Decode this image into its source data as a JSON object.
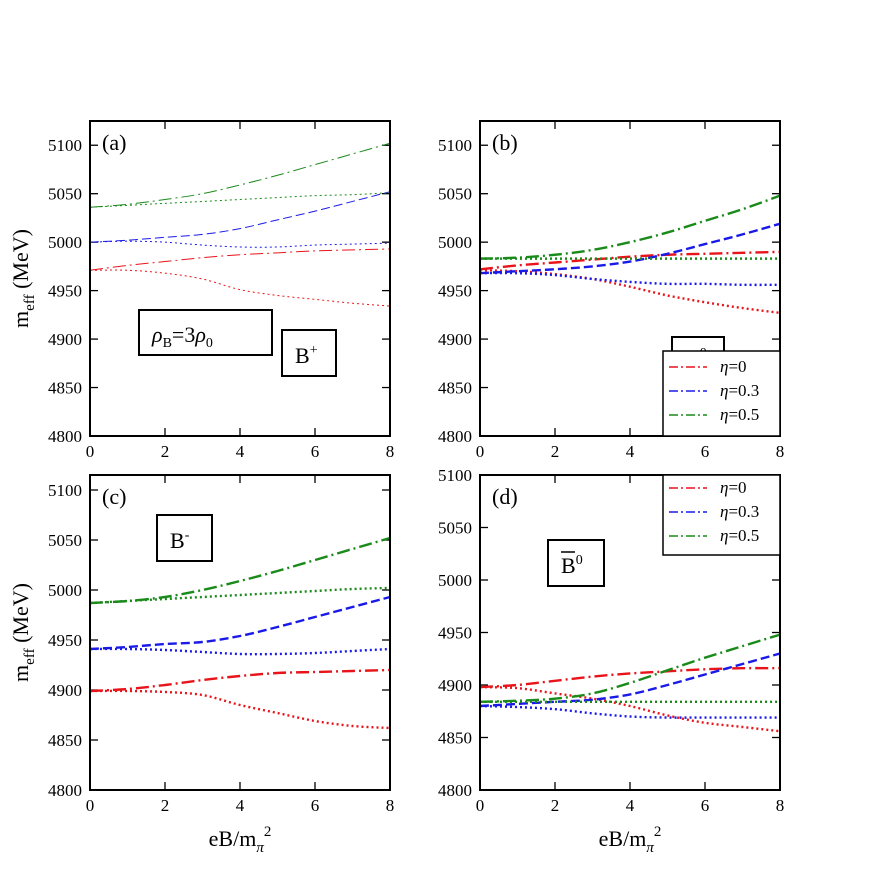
{
  "chart_data": [
    {
      "type": "line",
      "panel_label": "(a)",
      "particle": {
        "base": "B",
        "sup": "+",
        "overbar": false
      },
      "annotation": {
        "rho": "ρ",
        "sub": "B",
        "eq": "=3",
        "rho0": "ρ",
        "sub0": "0"
      },
      "xlim": [
        0,
        8
      ],
      "ylim": [
        4800,
        5125
      ],
      "xticks": [
        "0",
        "2",
        "4",
        "6",
        "8"
      ],
      "yticks": [
        "4800",
        "4850",
        "4900",
        "4950",
        "5000",
        "5050",
        "5100"
      ],
      "ylabel": {
        "main": "m",
        "sub": "eff",
        "rest": " (MeV)"
      },
      "line_width": 1,
      "series": [
        {
          "color": "#e8141a",
          "style": "dashdot",
          "x": [
            0,
            1,
            2,
            3,
            4,
            5,
            6,
            7,
            8
          ],
          "y": [
            4971,
            4976,
            4980,
            4984,
            4987,
            4989,
            4991,
            4992,
            4993
          ]
        },
        {
          "color": "#e8141a",
          "style": "dotted",
          "x": [
            0,
            1,
            2,
            3,
            4,
            5,
            6,
            7,
            8
          ],
          "y": [
            4971,
            4971,
            4968,
            4962,
            4951,
            4945,
            4941,
            4937,
            4934
          ]
        },
        {
          "color": "#1a1ae8",
          "style": "dashed",
          "x": [
            0,
            1,
            2,
            3,
            4,
            5,
            6,
            7,
            8
          ],
          "y": [
            5000,
            5002,
            5005,
            5008,
            5014,
            5023,
            5032,
            5042,
            5052
          ]
        },
        {
          "color": "#1a1ae8",
          "style": "dotted",
          "x": [
            0,
            1,
            2,
            3,
            4,
            5,
            6,
            7,
            8
          ],
          "y": [
            5000,
            5001,
            5000,
            4997,
            4995,
            4995,
            4997,
            4998,
            4999
          ]
        },
        {
          "color": "#1a8a1a",
          "style": "dashdot",
          "x": [
            0,
            1,
            2,
            3,
            4,
            5,
            6,
            7,
            8
          ],
          "y": [
            5036,
            5039,
            5044,
            5050,
            5059,
            5069,
            5080,
            5091,
            5102
          ]
        },
        {
          "color": "#1a8a1a",
          "style": "dotted",
          "x": [
            0,
            1,
            2,
            3,
            4,
            5,
            6,
            7,
            8
          ],
          "y": [
            5036,
            5038,
            5040,
            5042,
            5044,
            5046,
            5048,
            5049,
            5051
          ]
        }
      ]
    },
    {
      "type": "line",
      "panel_label": "(b)",
      "particle": {
        "base": "B",
        "sup": "0",
        "overbar": false
      },
      "xlim": [
        0,
        8
      ],
      "ylim": [
        4800,
        5125
      ],
      "xticks": [
        "0",
        "2",
        "4",
        "6",
        "8"
      ],
      "yticks": [
        "4800",
        "4850",
        "4900",
        "4950",
        "5000",
        "5050",
        "5100"
      ],
      "line_width": 2.4,
      "legend": {
        "position": "bottom-right",
        "entries": [
          {
            "eta": "η",
            "label": "=0",
            "color": "#e8141a"
          },
          {
            "eta": "η",
            "label": "=0.3",
            "color": "#1a1ae8"
          },
          {
            "eta": "η",
            "label": "=0.5",
            "color": "#1a8a1a"
          }
        ]
      },
      "series": [
        {
          "color": "#e8141a",
          "style": "dashdot",
          "x": [
            0,
            1,
            2,
            3,
            4,
            5,
            6,
            7,
            8
          ],
          "y": [
            4972,
            4976,
            4979,
            4982,
            4985,
            4987,
            4988,
            4989,
            4990
          ]
        },
        {
          "color": "#e8141a",
          "style": "dotted",
          "x": [
            0,
            1,
            2,
            3,
            4,
            5,
            6,
            7,
            8
          ],
          "y": [
            4971,
            4970,
            4967,
            4962,
            4954,
            4945,
            4938,
            4932,
            4927
          ]
        },
        {
          "color": "#1a1ae8",
          "style": "dashed",
          "x": [
            0,
            1,
            2,
            3,
            4,
            5,
            6,
            7,
            8
          ],
          "y": [
            4968,
            4970,
            4972,
            4975,
            4980,
            4988,
            4998,
            5008,
            5019
          ]
        },
        {
          "color": "#1a1ae8",
          "style": "dotted",
          "x": [
            0,
            1,
            2,
            3,
            4,
            5,
            6,
            7,
            8
          ],
          "y": [
            4968,
            4968,
            4966,
            4962,
            4959,
            4957,
            4957,
            4956,
            4956
          ]
        },
        {
          "color": "#1a8a1a",
          "style": "dashdot",
          "x": [
            0,
            1,
            2,
            3,
            4,
            5,
            6,
            7,
            8
          ],
          "y": [
            4983,
            4984,
            4987,
            4992,
            5000,
            5010,
            5022,
            5034,
            5048
          ]
        },
        {
          "color": "#1a8a1a",
          "style": "dotted",
          "x": [
            0,
            1,
            2,
            3,
            4,
            5,
            6,
            7,
            8
          ],
          "y": [
            4983,
            4983,
            4983,
            4983,
            4983,
            4983,
            4983,
            4983,
            4983
          ]
        }
      ]
    },
    {
      "type": "line",
      "panel_label": "(c)",
      "particle": {
        "base": "B",
        "sup": "-",
        "overbar": false
      },
      "xlim": [
        0,
        8
      ],
      "ylim": [
        4800,
        5115
      ],
      "xticks": [
        "0",
        "2",
        "4",
        "6",
        "8"
      ],
      "yticks": [
        "4800",
        "4850",
        "4900",
        "4950",
        "5000",
        "5050",
        "5100"
      ],
      "ylabel": {
        "main": "m",
        "sub": "eff",
        "rest": " (MeV)"
      },
      "xlabel": {
        "main": "eB/m",
        "sub": "π",
        "sup": "2"
      },
      "line_width": 2.4,
      "series": [
        {
          "color": "#e8141a",
          "style": "dashdot",
          "x": [
            0,
            1,
            2,
            3,
            4,
            5,
            6,
            7,
            8
          ],
          "y": [
            4899,
            4901,
            4905,
            4910,
            4914,
            4917,
            4918,
            4919,
            4920
          ]
        },
        {
          "color": "#e8141a",
          "style": "dotted",
          "x": [
            0,
            1,
            2,
            3,
            4,
            5,
            6,
            7,
            8
          ],
          "y": [
            4899,
            4899,
            4898,
            4895,
            4885,
            4877,
            4869,
            4864,
            4862
          ]
        },
        {
          "color": "#1a1ae8",
          "style": "dashed",
          "x": [
            0,
            1,
            2,
            3,
            4,
            5,
            6,
            7,
            8
          ],
          "y": [
            4941,
            4943,
            4946,
            4948,
            4954,
            4963,
            4973,
            4983,
            4993
          ]
        },
        {
          "color": "#1a1ae8",
          "style": "dotted",
          "x": [
            0,
            1,
            2,
            3,
            4,
            5,
            6,
            7,
            8
          ],
          "y": [
            4941,
            4941,
            4940,
            4938,
            4936,
            4936,
            4937,
            4939,
            4941
          ]
        },
        {
          "color": "#1a8a1a",
          "style": "dashdot",
          "x": [
            0,
            1,
            2,
            3,
            4,
            5,
            6,
            7,
            8
          ],
          "y": [
            4987,
            4989,
            4993,
            5000,
            5009,
            5019,
            5030,
            5041,
            5052
          ]
        },
        {
          "color": "#1a8a1a",
          "style": "dotted",
          "x": [
            0,
            1,
            2,
            3,
            4,
            5,
            6,
            7,
            8
          ],
          "y": [
            4987,
            4989,
            4991,
            4993,
            4995,
            4997,
            4999,
            5001,
            5002
          ]
        }
      ]
    },
    {
      "type": "line",
      "panel_label": "(d)",
      "particle": {
        "base": "B",
        "sup": "0",
        "overbar": true
      },
      "xlim": [
        0,
        8
      ],
      "ylim": [
        4800,
        5100
      ],
      "xticks": [
        "0",
        "2",
        "4",
        "6",
        "8"
      ],
      "yticks": [
        "4800",
        "4850",
        "4900",
        "4950",
        "5000",
        "5050",
        "5100"
      ],
      "xlabel": {
        "main": "eB/m",
        "sub": "π",
        "sup": "2"
      },
      "line_width": 2.4,
      "legend": {
        "position": "top-right",
        "entries": [
          {
            "eta": "η",
            "label": "=0",
            "color": "#e8141a"
          },
          {
            "eta": "η",
            "label": "=0.3",
            "color": "#1a1ae8"
          },
          {
            "eta": "η",
            "label": "=0.5",
            "color": "#1a8a1a"
          }
        ]
      },
      "series": [
        {
          "color": "#e8141a",
          "style": "dashdot",
          "x": [
            0,
            1,
            2,
            3,
            4,
            5,
            6,
            7,
            8
          ],
          "y": [
            4898,
            4900,
            4904,
            4908,
            4911,
            4913,
            4915,
            4916,
            4916
          ]
        },
        {
          "color": "#e8141a",
          "style": "dotted",
          "x": [
            0,
            1,
            2,
            3,
            4,
            5,
            6,
            7,
            8
          ],
          "y": [
            4898,
            4897,
            4892,
            4887,
            4880,
            4871,
            4864,
            4860,
            4856
          ]
        },
        {
          "color": "#1a1ae8",
          "style": "dashed",
          "x": [
            0,
            1,
            2,
            3,
            4,
            5,
            6,
            7,
            8
          ],
          "y": [
            4880,
            4882,
            4884,
            4886,
            4891,
            4900,
            4910,
            4920,
            4930
          ]
        },
        {
          "color": "#1a1ae8",
          "style": "dotted",
          "x": [
            0,
            1,
            2,
            3,
            4,
            5,
            6,
            7,
            8
          ],
          "y": [
            4880,
            4879,
            4877,
            4873,
            4870,
            4869,
            4869,
            4869,
            4869
          ]
        },
        {
          "color": "#1a8a1a",
          "style": "dashdot",
          "x": [
            0,
            1,
            2,
            3,
            4,
            5,
            6,
            7,
            8
          ],
          "y": [
            4884,
            4885,
            4887,
            4892,
            4902,
            4914,
            4926,
            4937,
            4948
          ]
        },
        {
          "color": "#1a8a1a",
          "style": "dotted",
          "x": [
            0,
            1,
            2,
            3,
            4,
            5,
            6,
            7,
            8
          ],
          "y": [
            4884,
            4884,
            4884,
            4884,
            4884,
            4884,
            4884,
            4884,
            4884
          ]
        }
      ]
    }
  ]
}
